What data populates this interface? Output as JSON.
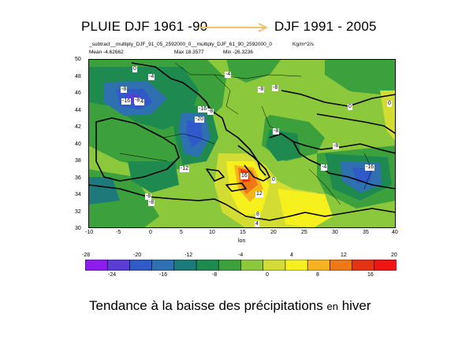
{
  "header": {
    "left_title": "PLUIE DJF 1961 -90",
    "right_title": "DJF 1991 - 2005"
  },
  "plot_info": {
    "field_name": "_subtract__multiply_DJF_91_05_2592000_0__multiply_DJF_61_90_2592000_0",
    "units": "Kg/m^2/s",
    "mean": "Mean -4.62662",
    "max": "Max 18.3577",
    "min": "Min -26.3236"
  },
  "axes": {
    "x_ticks": [
      "-10",
      "-5",
      "0",
      "5",
      "10",
      "15",
      "20",
      "25",
      "30",
      "35",
      "40"
    ],
    "y_ticks": [
      "50",
      "48",
      "46",
      "44",
      "42",
      "40",
      "38",
      "36",
      "34",
      "32",
      "30"
    ],
    "xlabel": "lon",
    "xlim": [
      -10,
      40
    ],
    "ylim": [
      30,
      50
    ]
  },
  "contour_labels": [
    {
      "text": "0"
    },
    {
      "text": "-4"
    },
    {
      "text": "-8"
    },
    {
      "text": "-16"
    },
    {
      "text": "-24"
    },
    {
      "text": "-8"
    },
    {
      "text": "-20"
    },
    {
      "text": "-12"
    },
    {
      "text": "-8"
    },
    {
      "text": "-8"
    },
    {
      "text": "-4"
    },
    {
      "text": "-8"
    },
    {
      "text": "-8"
    },
    {
      "text": "-16"
    },
    {
      "text": "-8"
    },
    {
      "text": "-4"
    },
    {
      "text": "-16"
    },
    {
      "text": "-8"
    },
    {
      "text": "0"
    },
    {
      "text": "0"
    },
    {
      "text": "16"
    },
    {
      "text": "12"
    },
    {
      "text": "8"
    },
    {
      "text": "4"
    },
    {
      "text": "0"
    },
    {
      "text": "-8"
    }
  ],
  "colorbar": {
    "top_labels": [
      "-28",
      "-20",
      "-12",
      "-4",
      "4",
      "12",
      "20"
    ],
    "bottom_labels": [
      "-24",
      "-16",
      "-8",
      "0",
      "8",
      "16"
    ],
    "colors": [
      "#8c1cf0",
      "#5a3cd8",
      "#2f5ac8",
      "#2e70b0",
      "#1e7a7a",
      "#1e8a50",
      "#3ca03c",
      "#8cc83c",
      "#d2dc32",
      "#f5f01e",
      "#f5b41e",
      "#f07814",
      "#e63214",
      "#f01414"
    ]
  },
  "footer": {
    "text_main_1": "Tendance à la baisse des précipitations",
    "text_small": "en",
    "text_main_2": "hiver"
  }
}
